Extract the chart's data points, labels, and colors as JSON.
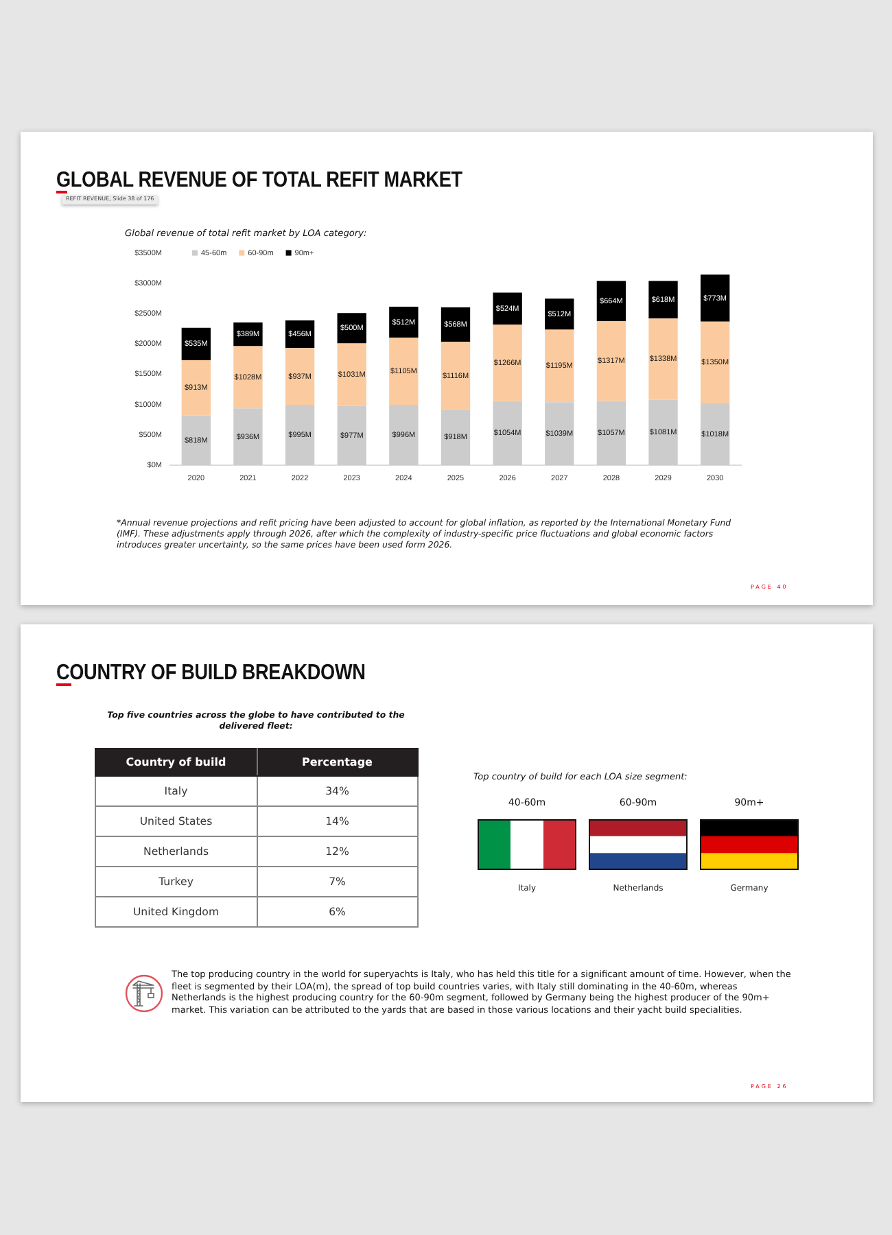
{
  "chart_data": [
    {
      "type": "bar",
      "title": "GLOBAL REVENUE OF TOTAL REFIT MARKET",
      "subtitle": "Global revenue of total refit market by LOA category:",
      "categories": [
        "2020",
        "2021",
        "2022",
        "2023",
        "2024",
        "2025",
        "2026",
        "2027",
        "2028",
        "2029",
        "2030"
      ],
      "series": [
        {
          "name": "45-60m",
          "color": "#cccccc",
          "values": [
            818,
            936,
            995,
            977,
            996,
            918,
            1054,
            1039,
            1057,
            1081,
            1018
          ],
          "value_labels": [
            "$818M",
            "$936M",
            "$995M",
            "$977M",
            "$996M",
            "$918M",
            "$1054M",
            "$1039M",
            "$1057M",
            "$1081M",
            "$1018M"
          ]
        },
        {
          "name": "60-90m",
          "color": "#fbcb9f",
          "values": [
            913,
            1028,
            937,
            1031,
            1105,
            1116,
            1266,
            1195,
            1317,
            1338,
            1350
          ],
          "value_labels": [
            "$913M",
            "$1028M",
            "$937M",
            "$1031M",
            "$1105M",
            "$1116M",
            "$1266M",
            "$1195M",
            "$1317M",
            "$1338M",
            "$1350M"
          ]
        },
        {
          "name": "90m+",
          "color": "#000000",
          "values": [
            535,
            389,
            456,
            500,
            512,
            568,
            524,
            512,
            664,
            618,
            773
          ],
          "value_labels": [
            "$535M",
            "$389M",
            "$456M",
            "$500M",
            "$512M",
            "$568M",
            "$524M",
            "$512M",
            "$664M",
            "$618M",
            "$773M"
          ]
        }
      ],
      "stacked": true,
      "ylim": [
        0,
        3500
      ],
      "yticks": [
        {
          "value": 0,
          "label": "$0M"
        },
        {
          "value": 500,
          "label": "$500M"
        },
        {
          "value": 1000,
          "label": "$1000M"
        },
        {
          "value": 1500,
          "label": "$1500M"
        },
        {
          "value": 2000,
          "label": "$2000M"
        },
        {
          "value": 2500,
          "label": "$2500M"
        },
        {
          "value": 3000,
          "label": "$3000M"
        },
        {
          "value": 3500,
          "label": "$3500M"
        }
      ],
      "grid": false,
      "legend": "top left",
      "annotations": [
        "REFIT REVENUE, Slide 38 of 176",
        "*Annual revenue projections and refit pricing have been adjusted to account for global inflation, as reported by the International Monetary Fund (IMF). These adjustments apply through 2026, after which the complexity of industry-specific price fluctuations and global economic factors introduces greater uncertainty, so the same prices have been used form 2026.",
        "PAGE 40"
      ]
    },
    {
      "type": "other",
      "title": "COUNTRY OF BUILD BREAKDOWN",
      "subtitle": "Top five countries across the globe to have contributed to the delivered fleet:",
      "xlabel": "Country of build",
      "ylabel": "Percentage",
      "categories": [
        "Italy",
        "United States",
        "Netherlands",
        "Turkey",
        "United Kingdom"
      ],
      "values": [
        34,
        14,
        12,
        7,
        6
      ],
      "value_labels": [
        "34%",
        "14%",
        "12%",
        "7%",
        "6%"
      ],
      "annotations": [
        "Top country of build for each LOA size segment:",
        "40-60m",
        "60-90m",
        "90m+",
        "Italy",
        "Netherlands",
        "Germany",
        "The top producing country in the world for superyachts is Italy, who has held this title for a significant amount of time. However, when the fleet is segmented by their LOA(m), the spread of top build countries varies, with Italy still dominating in the 40-60m, whereas Netherlands is the highest producing country for the 60-90m segment, followed by Germany being the highest producer of the 90m+ market. This variation can be attributed to the yards that are based in those various locations and their yacht build specialities.",
        "PAGE 26"
      ]
    }
  ]
}
